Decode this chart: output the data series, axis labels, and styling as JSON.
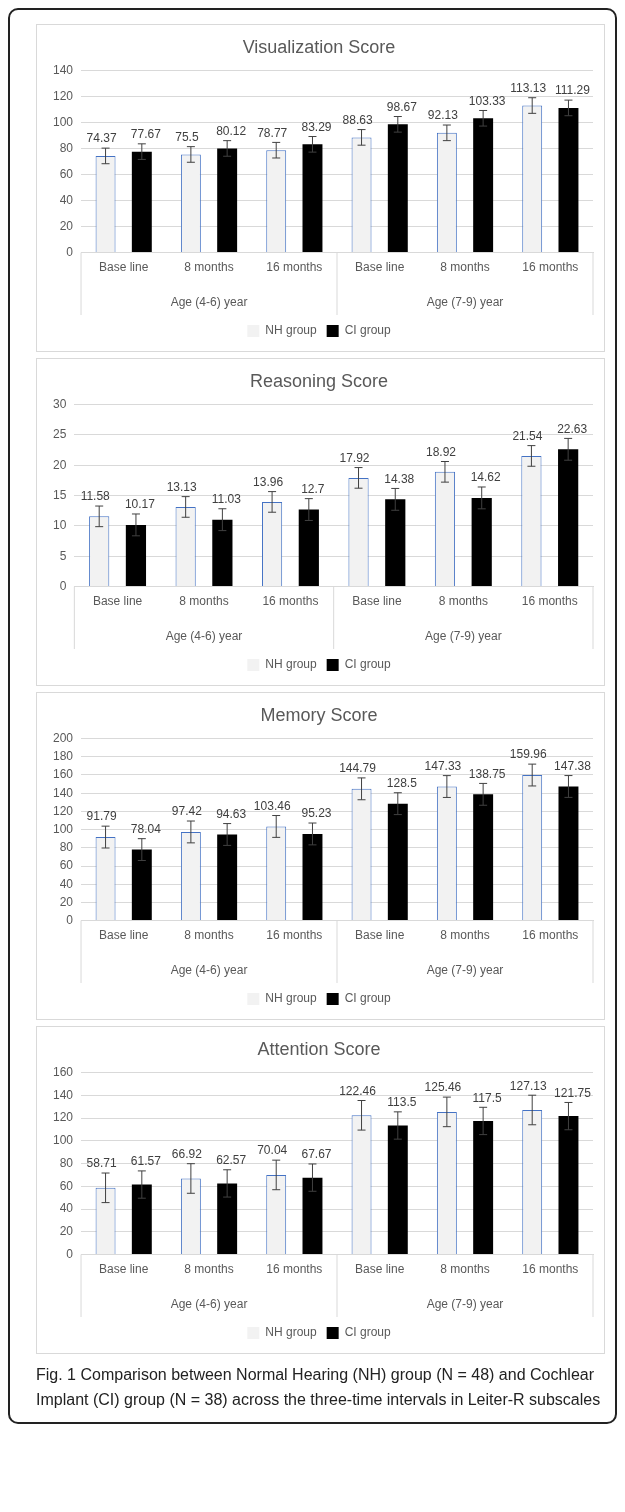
{
  "chart_data": [
    {
      "type": "bar",
      "title": "Visualization Score",
      "categories": [
        "Base line",
        "8 months",
        "16 months",
        "Base line",
        "8 months",
        "16 months"
      ],
      "annotations": [
        "Age (4-6) year",
        "Age (7-9) year"
      ],
      "ylim": [
        0,
        140
      ],
      "yticks": [
        0,
        20,
        40,
        60,
        80,
        100,
        120,
        140
      ],
      "grid": "y",
      "legend": "bottom",
      "data_labels": true,
      "series": [
        {
          "name": "NH group",
          "color": "#f2f2f2",
          "values": [
            74.37,
            75.5,
            78.77,
            88.63,
            92.13,
            113.13
          ],
          "errors": [
            6,
            6,
            6,
            6,
            6,
            6
          ]
        },
        {
          "name": "CI group",
          "color": "#000000",
          "values": [
            77.67,
            80.12,
            83.29,
            98.67,
            103.33,
            111.29
          ],
          "errors": [
            6,
            6,
            6,
            6,
            6,
            6
          ]
        }
      ]
    },
    {
      "type": "bar",
      "title": "Reasoning Score",
      "categories": [
        "Base line",
        "8 months",
        "16 months",
        "Base line",
        "8 months",
        "16 months"
      ],
      "annotations": [
        "Age (4-6) year",
        "Age (7-9) year"
      ],
      "ylim": [
        0,
        30
      ],
      "yticks": [
        0,
        5,
        10,
        15,
        20,
        25,
        30
      ],
      "grid": "y",
      "legend": "bottom",
      "data_labels": true,
      "series": [
        {
          "name": "NH group",
          "color": "#f2f2f2",
          "values": [
            11.58,
            13.13,
            13.96,
            17.92,
            18.92,
            21.54
          ],
          "errors": [
            1.7,
            1.7,
            1.7,
            1.7,
            1.7,
            1.7
          ]
        },
        {
          "name": "CI group",
          "color": "#000000",
          "values": [
            10.17,
            11.03,
            12.7,
            14.38,
            14.62,
            22.63
          ],
          "errors": [
            1.8,
            1.8,
            1.8,
            1.8,
            1.8,
            1.8
          ]
        }
      ]
    },
    {
      "type": "bar",
      "title": "Memory Score",
      "categories": [
        "Base line",
        "8 months",
        "16 months",
        "Base line",
        "8 months",
        "16 months"
      ],
      "annotations": [
        "Age (4-6) year",
        "Age (7-9) year"
      ],
      "ylim": [
        0,
        200
      ],
      "yticks": [
        0,
        20,
        40,
        60,
        80,
        100,
        120,
        140,
        160,
        180,
        200
      ],
      "grid": "y",
      "legend": "bottom",
      "data_labels": true,
      "series": [
        {
          "name": "NH group",
          "color": "#f2f2f2",
          "values": [
            91.79,
            97.42,
            103.46,
            144.79,
            147.33,
            159.96
          ],
          "errors": [
            12,
            12,
            12,
            12,
            12,
            12
          ]
        },
        {
          "name": "CI group",
          "color": "#000000",
          "values": [
            78.04,
            94.63,
            95.23,
            128.5,
            138.75,
            147.38
          ],
          "errors": [
            12,
            12,
            12,
            12,
            12,
            12
          ]
        }
      ]
    },
    {
      "type": "bar",
      "title": "Attention Score",
      "categories": [
        "Base line",
        "8 months",
        "16 months",
        "Base line",
        "8 months",
        "16 months"
      ],
      "annotations": [
        "Age (4-6) year",
        "Age (7-9) year"
      ],
      "ylim": [
        0,
        160
      ],
      "yticks": [
        0,
        20,
        40,
        60,
        80,
        100,
        120,
        140,
        160
      ],
      "grid": "y",
      "legend": "bottom",
      "data_labels": true,
      "series": [
        {
          "name": "NH group",
          "color": "#f2f2f2",
          "values": [
            58.71,
            66.92,
            70.04,
            122.46,
            125.46,
            127.13
          ],
          "errors": [
            13,
            13,
            13,
            13,
            13,
            13
          ]
        },
        {
          "name": "CI group",
          "color": "#000000",
          "values": [
            61.57,
            62.57,
            67.67,
            113.5,
            117.5,
            121.75
          ],
          "errors": [
            12,
            12,
            12,
            12,
            12,
            12
          ]
        }
      ]
    },
    {
      "type": "other",
      "annotations": [
        "Fig. 1 Comparison between Normal Hearing (NH) group (N = 48) and Cochlear Implant (CI) group (N = 38) across the three-time intervals in Leiter-R subscales"
      ]
    }
  ]
}
